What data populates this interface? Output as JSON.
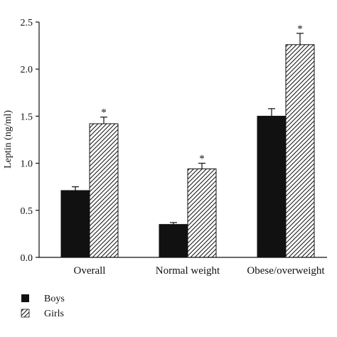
{
  "chart_data": {
    "type": "bar",
    "categories": [
      "Overall",
      "Normal weight",
      "Obese/overweight"
    ],
    "ylabel": "Leptin (ng/ml)",
    "ylim": [
      0,
      2.5
    ],
    "yticks": [
      "0.0",
      "0.5",
      "1.0",
      "1.5",
      "2.0",
      "2.5"
    ],
    "series": [
      {
        "name": "Boys",
        "values": [
          0.71,
          0.35,
          1.5
        ],
        "errors": [
          0.04,
          0.02,
          0.08
        ],
        "significance": [
          "",
          "",
          ""
        ],
        "fill": "solid",
        "color": "#111111"
      },
      {
        "name": "Girls",
        "values": [
          1.42,
          0.94,
          2.26
        ],
        "errors": [
          0.07,
          0.06,
          0.12
        ],
        "significance": [
          "*",
          "*",
          "*"
        ],
        "fill": "hatched",
        "color": "#111111"
      }
    ],
    "grid": false,
    "legend_position": "bottom-left"
  }
}
